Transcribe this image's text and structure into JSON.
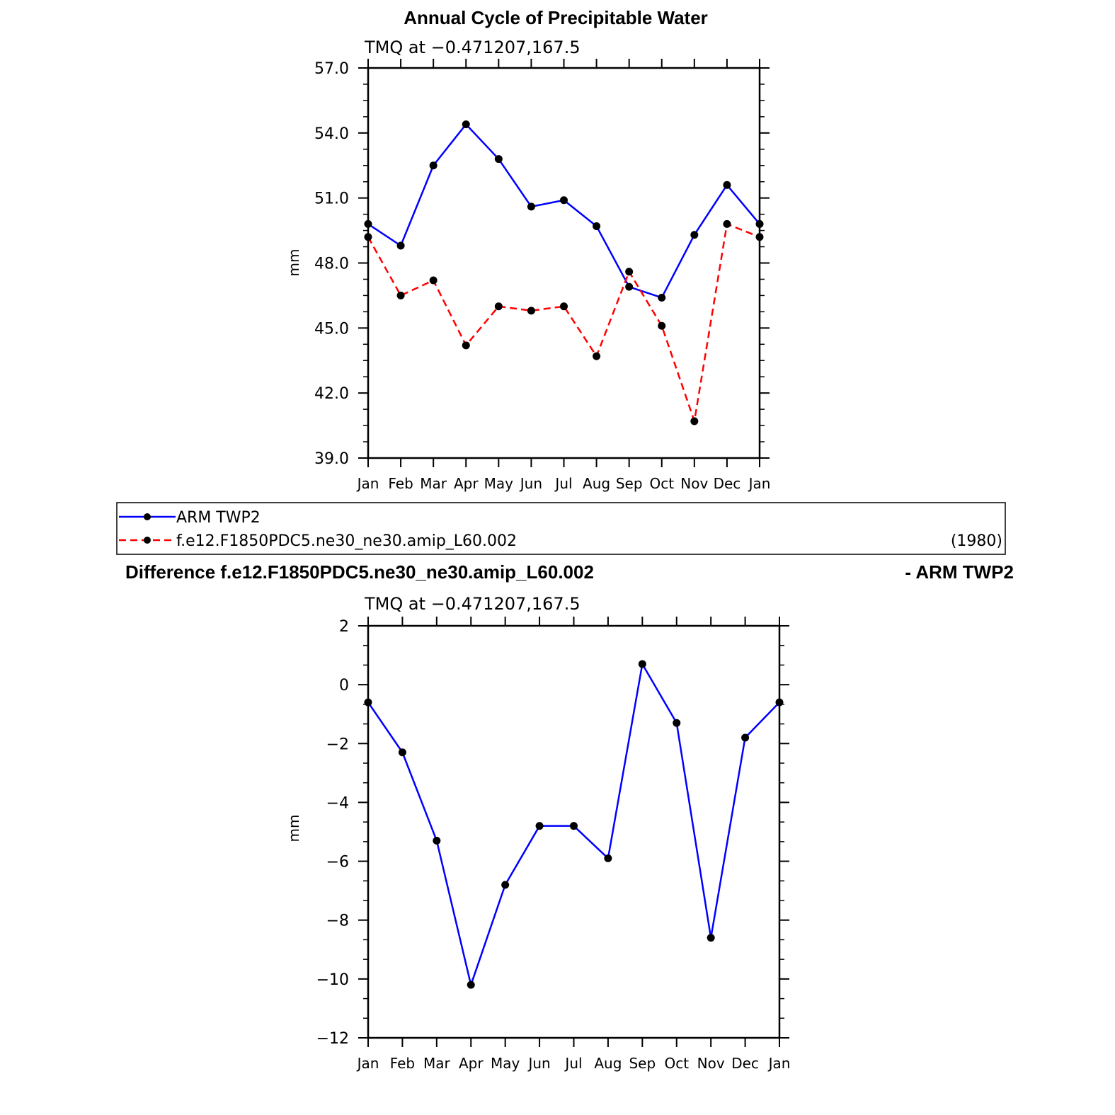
{
  "top_title": "Annual Cycle of Precipitable Water",
  "legend": {
    "entries": [
      "ARM TWP2",
      "f.e12.F1850PDC5.ne30_ne30.amip_L60.002"
    ],
    "year": "(1980)"
  },
  "diff_title_left": "Difference f.e12.F1850PDC5.ne30_ne30.amip_L60.002",
  "diff_title_right": "- ARM TWP2",
  "colors": {
    "obs": "#0000ff",
    "model": "#ff0000",
    "marker": "#000000"
  },
  "chart_data": [
    {
      "type": "line",
      "subtitle": "TMQ at −0.471207,167.5",
      "ylabel": "mm",
      "categories": [
        "Jan",
        "Feb",
        "Mar",
        "Apr",
        "May",
        "Jun",
        "Jul",
        "Aug",
        "Sep",
        "Oct",
        "Nov",
        "Dec",
        "Jan"
      ],
      "ylim": [
        39.0,
        57.0
      ],
      "yticks": [
        "39.0",
        "42.0",
        "45.0",
        "48.0",
        "51.0",
        "54.0",
        "57.0"
      ],
      "series": [
        {
          "name": "ARM TWP2",
          "style": "solid",
          "color": "#0000ff",
          "values": [
            49.8,
            48.8,
            52.5,
            54.4,
            52.8,
            50.6,
            50.9,
            49.7,
            46.9,
            46.4,
            49.3,
            51.6,
            49.8
          ]
        },
        {
          "name": "f.e12.F1850PDC5.ne30_ne30.amip_L60.002",
          "style": "dashed",
          "color": "#ff0000",
          "values": [
            49.2,
            46.5,
            47.2,
            44.2,
            46.0,
            45.8,
            46.0,
            43.7,
            47.6,
            45.1,
            40.7,
            49.8,
            49.2
          ]
        }
      ]
    },
    {
      "type": "line",
      "subtitle": "TMQ at −0.471207,167.5",
      "ylabel": "mm",
      "categories": [
        "Jan",
        "Feb",
        "Mar",
        "Apr",
        "May",
        "Jun",
        "Jul",
        "Aug",
        "Sep",
        "Oct",
        "Nov",
        "Dec",
        "Jan"
      ],
      "ylim": [
        -12,
        2
      ],
      "yticks": [
        "−12",
        "−10",
        "−8",
        "−6",
        "−4",
        "−2",
        "0",
        "2"
      ],
      "series": [
        {
          "name": "Difference",
          "style": "solid",
          "color": "#0000ff",
          "values": [
            -0.6,
            -2.3,
            -5.3,
            -10.2,
            -6.8,
            -4.8,
            -4.8,
            -5.9,
            0.7,
            -1.3,
            -8.6,
            -1.8,
            -0.6
          ]
        }
      ]
    }
  ]
}
